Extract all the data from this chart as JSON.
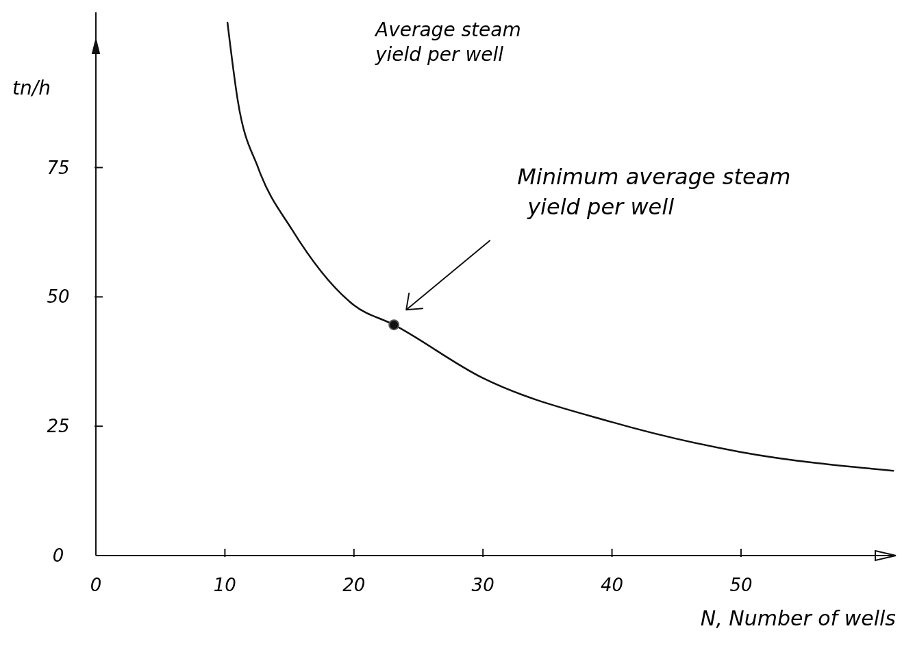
{
  "chart_data": {
    "type": "line",
    "xlabel": "N, Number of wells",
    "ylabel": "tn/h",
    "xlim": [
      0,
      62
    ],
    "ylim": [
      0,
      105
    ],
    "xticks": [
      0,
      10,
      20,
      30,
      40,
      50
    ],
    "yticks": [
      0,
      25,
      50,
      75
    ],
    "grid": false,
    "series": [
      {
        "color": "#111111",
        "x": [
          10.2,
          11,
          12.6,
          15.2,
          20,
          23.1,
          30,
          40,
          50,
          61.8
        ],
        "values": [
          103,
          87.9,
          74.8,
          63,
          48.4,
          44.6,
          34.3,
          25.8,
          20,
          16.4
        ]
      },
      {
        "type": "scatter",
        "marker": "circle",
        "color": "#111111",
        "x": [
          23.1
        ],
        "values": [
          44.6
        ]
      }
    ],
    "annotations": [
      "Average steam yield per well",
      "Minimum average steam yield per well"
    ]
  }
}
